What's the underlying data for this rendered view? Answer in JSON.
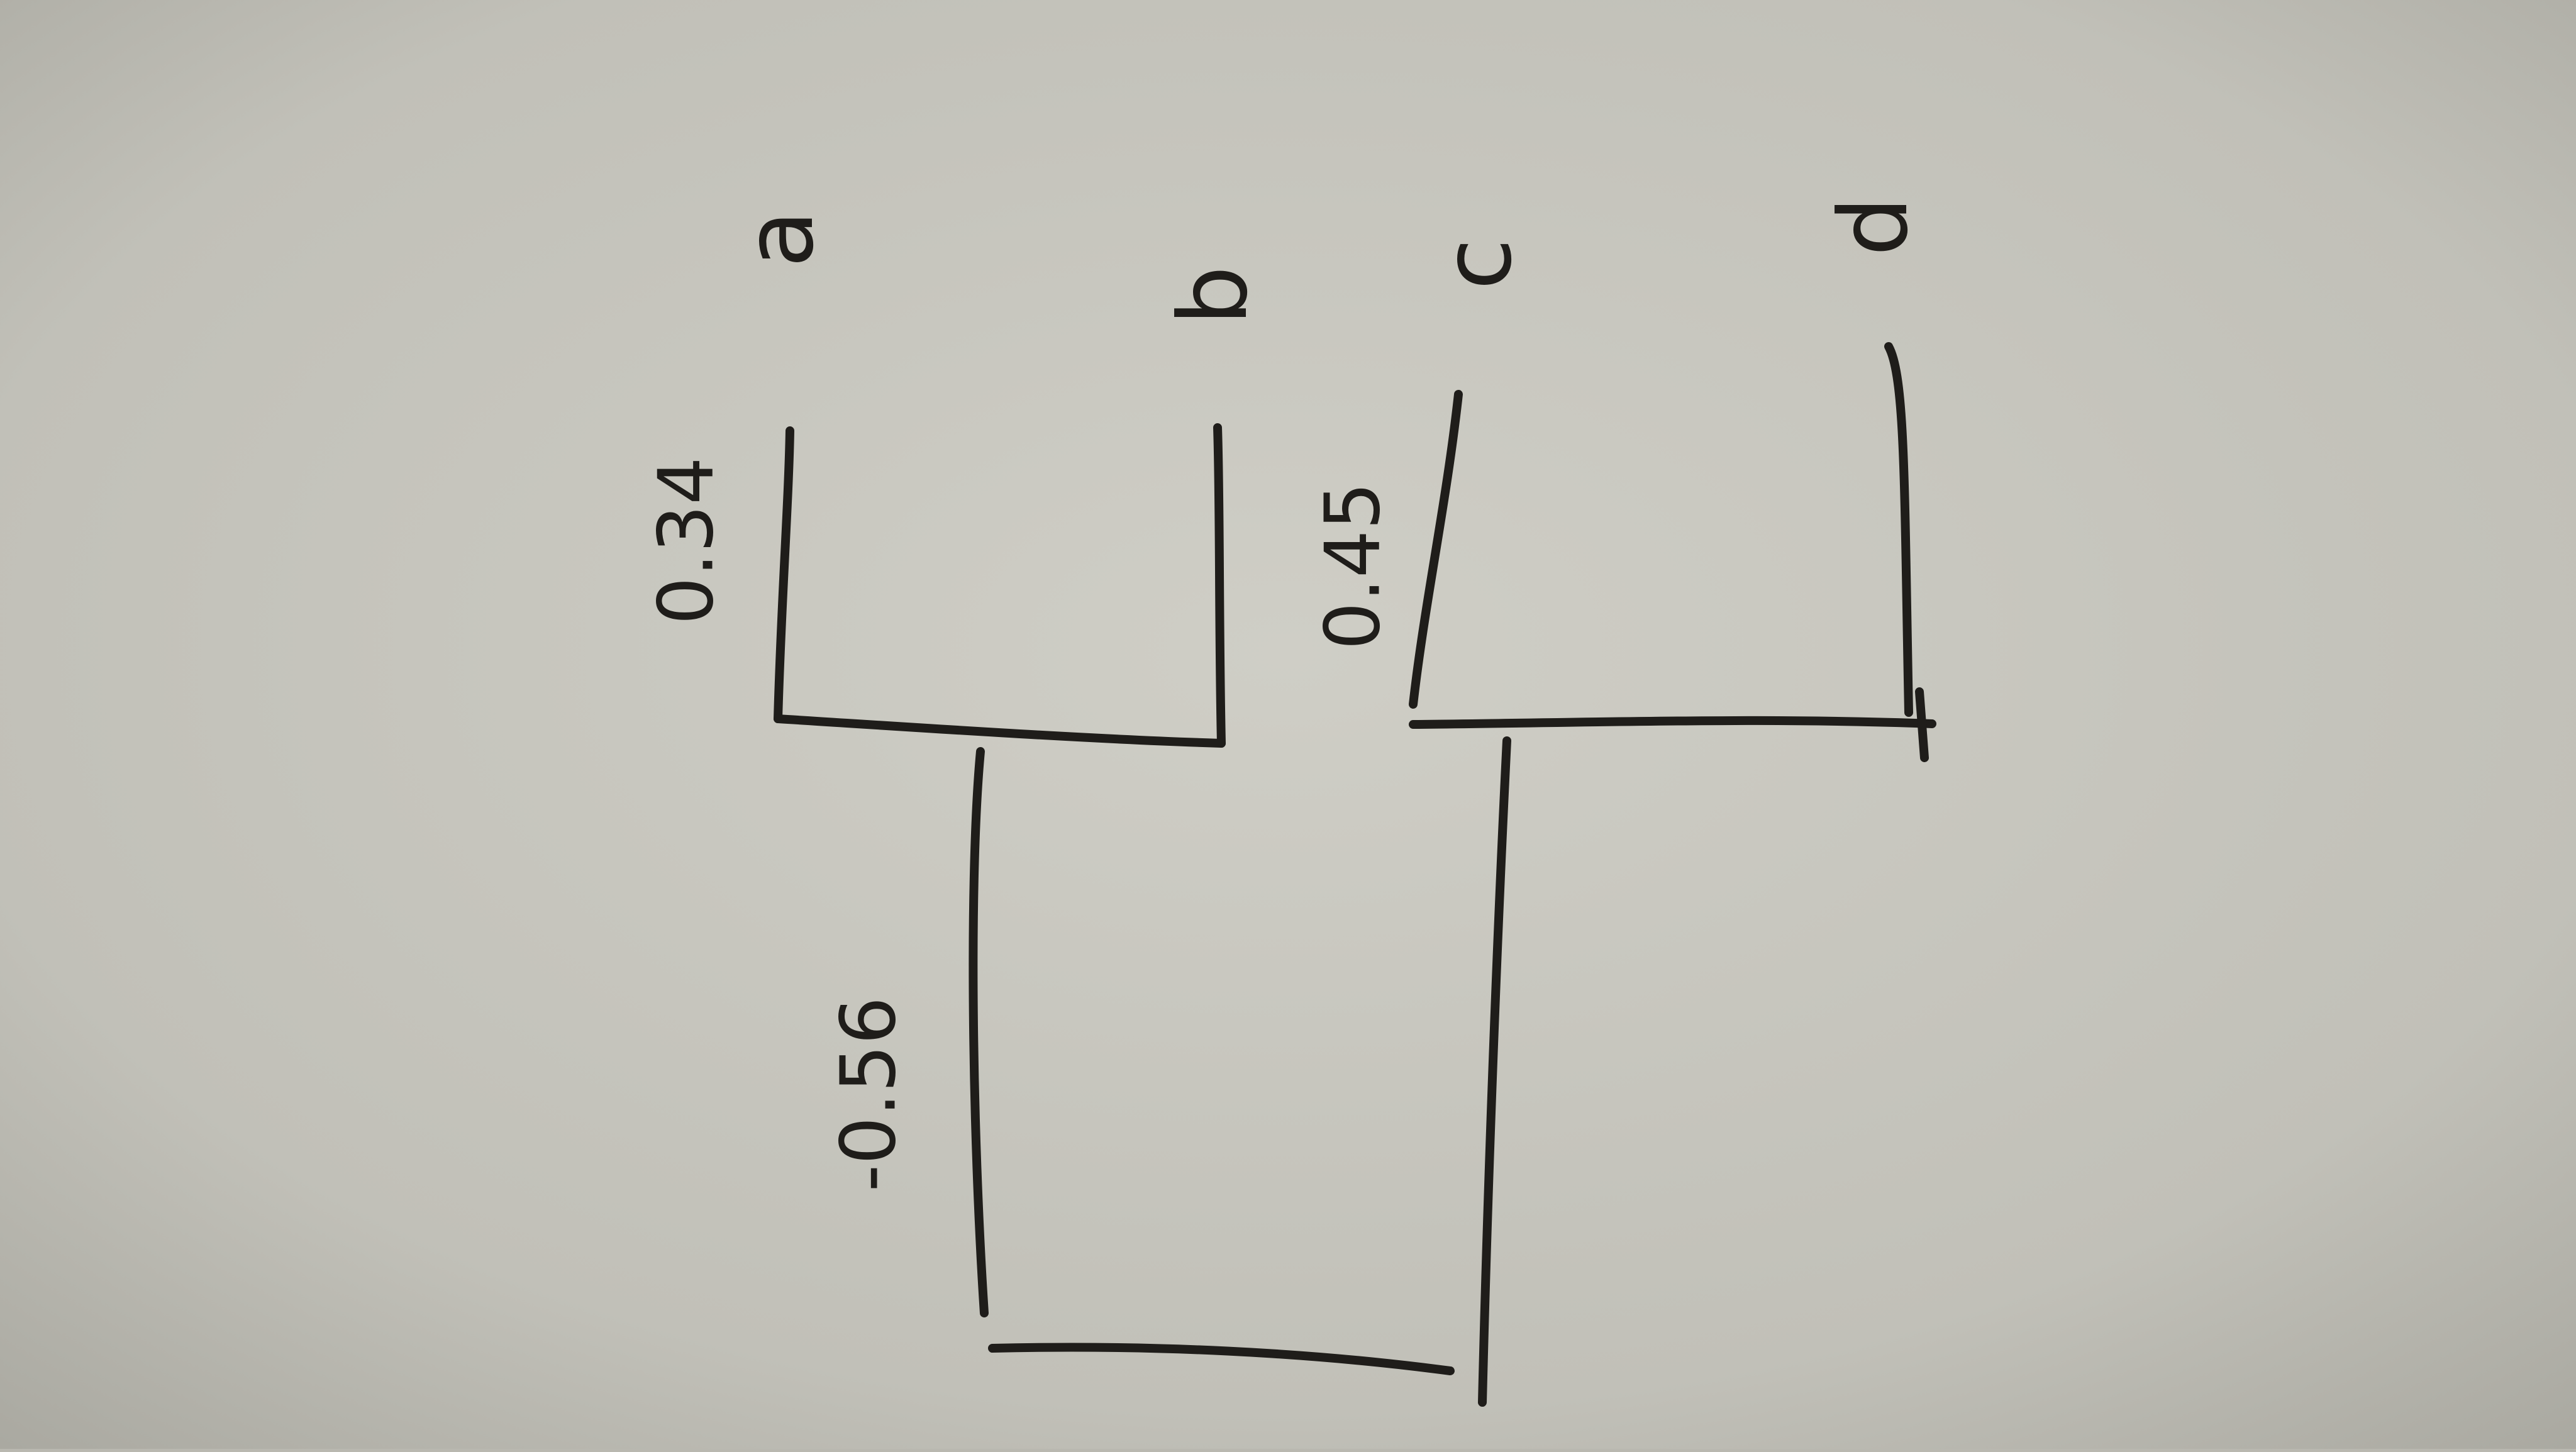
{
  "diagram": {
    "kind": "dendrogram",
    "orientation": "rotated 90 degrees counter-clockwise (photo of paper)",
    "leaves": [
      {
        "name": "a"
      },
      {
        "name": "b"
      },
      {
        "name": "c"
      },
      {
        "name": "d"
      }
    ],
    "merges": [
      {
        "id": "ab",
        "children": [
          "a",
          "b"
        ],
        "label": "0.34"
      },
      {
        "id": "cd",
        "children": [
          "c",
          "d"
        ],
        "label": "0.45"
      },
      {
        "id": "abcd",
        "children": [
          "ab",
          "cd"
        ],
        "label": "-0.56"
      }
    ],
    "colors": {
      "paper": "#c3c2ba",
      "ink": "#1f1d1a"
    }
  }
}
